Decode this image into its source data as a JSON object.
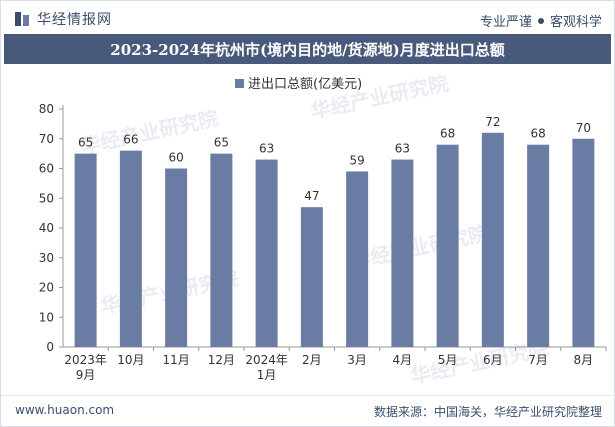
{
  "header": {
    "brand": "华经情报网",
    "tagline_left": "专业严谨",
    "tagline_right": "客观科学"
  },
  "title": "2023-2024年杭州市(境内目的地/货源地)月度进出口总额",
  "footer": {
    "website": "www.huaon.com",
    "source": "数据来源：中国海关，华经产业研究院整理"
  },
  "watermark": "华经产业研究院",
  "colors": {
    "bar": "#6a7ca3",
    "titlebar": "#48597c",
    "text": "#3a4d6b"
  },
  "chart_data": {
    "type": "bar",
    "categories": [
      [
        "2023年",
        "9月"
      ],
      [
        "10月"
      ],
      [
        "11月"
      ],
      [
        "12月"
      ],
      [
        "2024年",
        "1月"
      ],
      [
        "2月"
      ],
      [
        "3月"
      ],
      [
        "4月"
      ],
      [
        "5月"
      ],
      [
        "6月"
      ],
      [
        "7月"
      ],
      [
        "8月"
      ]
    ],
    "series": [
      {
        "name": "进出口总额(亿美元)",
        "values": [
          65,
          66,
          60,
          65,
          63,
          47,
          59,
          63,
          68,
          72,
          68,
          70
        ]
      }
    ],
    "ylim": [
      0,
      80
    ],
    "yticks": [
      0,
      10,
      20,
      30,
      40,
      50,
      60,
      70,
      80
    ],
    "legend_position": "top-center",
    "grid": false
  }
}
